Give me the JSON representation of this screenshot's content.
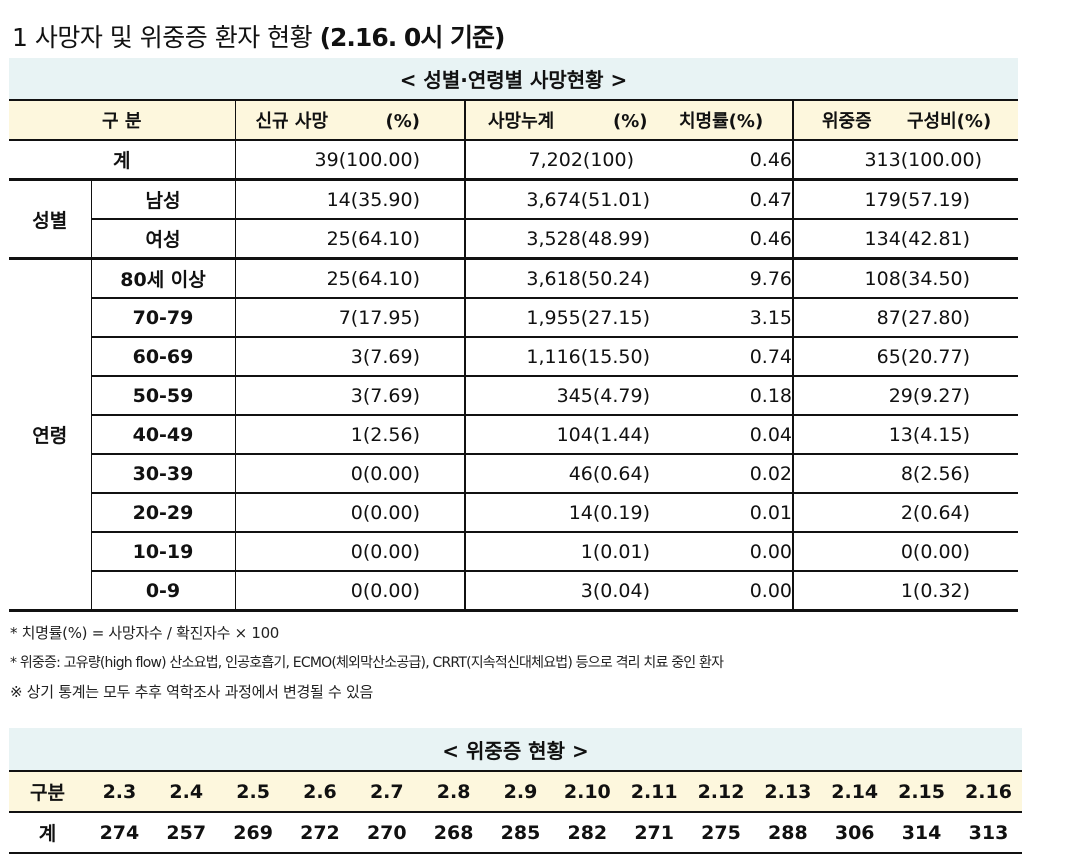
{
  "heading": {
    "prefix": "1 사망자 및 위중증 환자 현황",
    "date": "(2.16. 0시 기준)"
  },
  "table1": {
    "caption": "< 성별·연령별 사망현황 >",
    "headers": {
      "category": "구 분",
      "new_deaths": "신규 사망",
      "new_deaths_pct": "(%)",
      "cumulative": "사망누계",
      "cumulative_pct": "(%)",
      "cfr": "치명률(%)",
      "severe": "위중증",
      "severe_ratio": "구성비(%)"
    },
    "total": {
      "label": "계",
      "new": "39(100.00)",
      "cum": "7,202(100)",
      "cfr": "0.46",
      "severe": "313(100.00)"
    },
    "sex_group": "성별",
    "sex": [
      {
        "label": "남성",
        "new": "14(35.90)",
        "cum": "3,674(51.01)",
        "cfr": "0.47",
        "severe": "179(57.19)"
      },
      {
        "label": "여성",
        "new": "25(64.10)",
        "cum": "3,528(48.99)",
        "cfr": "0.46",
        "severe": "134(42.81)"
      }
    ],
    "age_group": "연령",
    "age": [
      {
        "label": "80세 이상",
        "new": "25(64.10)",
        "cum": "3,618(50.24)",
        "cfr": "9.76",
        "severe": "108(34.50)"
      },
      {
        "label": "70-79",
        "new": "7(17.95)",
        "cum": "1,955(27.15)",
        "cfr": "3.15",
        "severe": "87(27.80)"
      },
      {
        "label": "60-69",
        "new": "3(7.69)",
        "cum": "1,116(15.50)",
        "cfr": "0.74",
        "severe": "65(20.77)"
      },
      {
        "label": "50-59",
        "new": "3(7.69)",
        "cum": "345(4.79)",
        "cfr": "0.18",
        "severe": "29(9.27)"
      },
      {
        "label": "40-49",
        "new": "1(2.56)",
        "cum": "104(1.44)",
        "cfr": "0.04",
        "severe": "13(4.15)"
      },
      {
        "label": "30-39",
        "new": "0(0.00)",
        "cum": "46(0.64)",
        "cfr": "0.02",
        "severe": "8(2.56)"
      },
      {
        "label": "20-29",
        "new": "0(0.00)",
        "cum": "14(0.19)",
        "cfr": "0.01",
        "severe": "2(0.64)"
      },
      {
        "label": "10-19",
        "new": "0(0.00)",
        "cum": "1(0.01)",
        "cfr": "0.00",
        "severe": "0(0.00)"
      },
      {
        "label": "0-9",
        "new": "0(0.00)",
        "cum": "3(0.04)",
        "cfr": "0.00",
        "severe": "1(0.32)"
      }
    ]
  },
  "notes": [
    "* 치명률(%) = 사망자수 / 확진자수 × 100",
    "* 위중증: 고유량(high flow) 산소요법, 인공호흡기, ECMO(체외막산소공급), CRRT(지속적신대체요법) 등으로 격리 치료 중인 환자",
    "※ 상기 통계는 모두 추후 역학조사 과정에서 변경될 수 있음"
  ],
  "table2": {
    "caption": "< 위중증 현황 >",
    "header_label": "구분",
    "dates": [
      "2.3",
      "2.4",
      "2.5",
      "2.6",
      "2.7",
      "2.8",
      "2.9",
      "2.10",
      "2.11",
      "2.12",
      "2.13",
      "2.14",
      "2.15",
      "2.16"
    ],
    "row_label": "계",
    "values": [
      "274",
      "257",
      "269",
      "272",
      "270",
      "268",
      "285",
      "282",
      "271",
      "275",
      "288",
      "306",
      "314",
      "313"
    ]
  }
}
